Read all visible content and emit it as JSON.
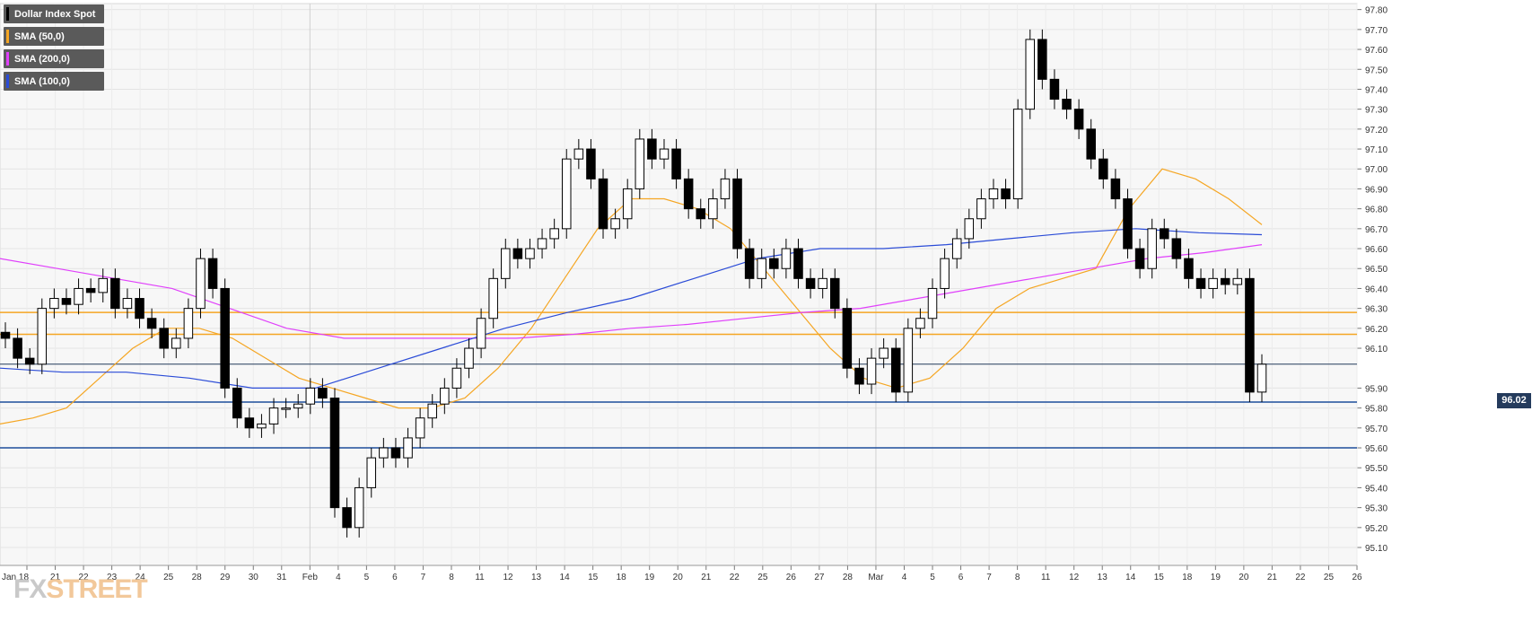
{
  "chart_data": {
    "type": "candlestick",
    "title": "",
    "ylim": [
      95.01,
      97.83
    ],
    "yticks": [
      "97.80",
      "97.70",
      "97.60",
      "97.50",
      "97.40",
      "97.30",
      "97.20",
      "97.10",
      "97.00",
      "96.90",
      "96.80",
      "96.70",
      "96.60",
      "96.50",
      "96.40",
      "96.30",
      "96.20",
      "96.10",
      "95.90",
      "95.80",
      "95.70",
      "95.60",
      "95.50",
      "95.40",
      "95.30",
      "95.20",
      "95.10"
    ],
    "xticks": [
      "Jan 18",
      "21",
      "22",
      "23",
      "24",
      "25",
      "28",
      "29",
      "30",
      "31",
      "Feb",
      "4",
      "5",
      "6",
      "7",
      "8",
      "11",
      "12",
      "13",
      "14",
      "15",
      "18",
      "19",
      "20",
      "21",
      "22",
      "25",
      "26",
      "27",
      "28",
      "Mar",
      "4",
      "5",
      "6",
      "7",
      "8",
      "11",
      "12",
      "13",
      "14",
      "15",
      "18",
      "19",
      "20",
      "21",
      "22",
      "25",
      "26"
    ],
    "legend": [
      {
        "label": "Dollar Index Spot",
        "color": "#000000"
      },
      {
        "label": "SMA (50,0)",
        "color": "#f5a623"
      },
      {
        "label": "SMA (200,0)",
        "color": "#e040fb"
      },
      {
        "label": "SMA (100,0)",
        "color": "#2a4bd7"
      }
    ],
    "horizontal_levels": [
      {
        "value": 96.28,
        "color": "#f5a623"
      },
      {
        "value": 96.17,
        "color": "#f5a623"
      },
      {
        "value": 95.83,
        "color": "#1f4e9c"
      },
      {
        "value": 95.6,
        "color": "#1f4e9c"
      }
    ],
    "last_price": "96.02",
    "close_series": [
      96.15,
      96.05,
      96.02,
      96.3,
      96.35,
      96.32,
      96.4,
      96.38,
      96.45,
      96.3,
      96.35,
      96.25,
      96.2,
      96.1,
      96.15,
      96.3,
      96.55,
      96.4,
      95.9,
      95.75,
      95.7,
      95.72,
      95.8,
      95.8,
      95.82,
      95.9,
      95.85,
      95.3,
      95.2,
      95.4,
      95.55,
      95.6,
      95.55,
      95.65,
      95.75,
      95.82,
      95.9,
      96.0,
      96.1,
      96.25,
      96.45,
      96.6,
      96.55,
      96.6,
      96.65,
      96.7,
      97.05,
      97.1,
      96.95,
      96.7,
      96.75,
      96.9,
      97.15,
      97.05,
      97.1,
      96.95,
      96.8,
      96.75,
      96.85,
      96.95,
      96.6,
      96.45,
      96.55,
      96.5,
      96.6,
      96.45,
      96.4,
      96.45,
      96.3,
      96.0,
      95.92,
      96.05,
      96.1,
      95.88,
      96.2,
      96.25,
      96.4,
      96.55,
      96.65,
      96.75,
      96.85,
      96.9,
      96.85,
      97.3,
      97.65,
      97.45,
      97.35,
      97.3,
      97.2,
      97.05,
      96.95,
      96.85,
      96.6,
      96.5,
      96.7,
      96.65,
      96.55,
      96.45,
      96.4,
      96.45,
      96.42,
      96.45,
      95.88,
      96.02
    ],
    "series": [
      {
        "name": "SMA (50,0)",
        "values": [
          95.72,
          95.75,
          95.8,
          95.95,
          96.1,
          96.2,
          96.2,
          96.15,
          96.05,
          95.95,
          95.9,
          95.85,
          95.8,
          95.8,
          95.85,
          96.0,
          96.2,
          96.45,
          96.7,
          96.85,
          96.85,
          96.8,
          96.7,
          96.5,
          96.3,
          96.1,
          95.95,
          95.9,
          95.95,
          96.1,
          96.3,
          96.4,
          96.45,
          96.5,
          96.8,
          97.0,
          96.95,
          96.85,
          96.72
        ]
      },
      {
        "name": "SMA (200,0)",
        "values": [
          96.55,
          96.5,
          96.45,
          96.4,
          96.3,
          96.2,
          96.15,
          96.15,
          96.15,
          96.15,
          96.17,
          96.2,
          96.22,
          96.25,
          96.28,
          96.3,
          96.35,
          96.4,
          96.45,
          96.5,
          96.55,
          96.58,
          96.62
        ]
      },
      {
        "name": "SMA (100,0)",
        "values": [
          96.0,
          95.98,
          95.98,
          95.95,
          95.9,
          95.9,
          96.0,
          96.1,
          96.2,
          96.28,
          96.35,
          96.45,
          96.55,
          96.6,
          96.6,
          96.62,
          96.65,
          96.68,
          96.7,
          96.68,
          96.67
        ]
      }
    ]
  }
}
